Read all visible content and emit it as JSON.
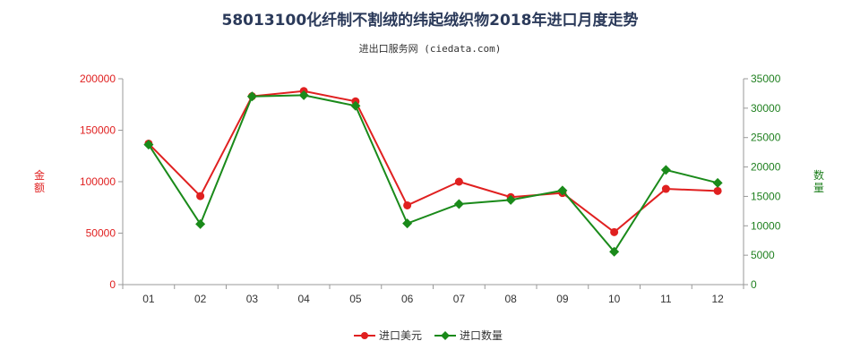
{
  "chart_data": {
    "type": "line",
    "title": "58013100化纤制不割绒的纬起绒织物2018年进口月度走势",
    "subtitle": "进出口服务网 (ciedata.com)",
    "categories": [
      "01",
      "02",
      "03",
      "04",
      "05",
      "06",
      "07",
      "08",
      "09",
      "10",
      "11",
      "12"
    ],
    "y_left": {
      "label": "金额",
      "ylim": [
        0,
        200000
      ],
      "ticks": [
        "0",
        "50000",
        "100000",
        "150000",
        "200000"
      ],
      "color": "#e02020"
    },
    "y_right": {
      "label": "数量",
      "ylim": [
        0,
        35000
      ],
      "ticks": [
        "0",
        "5000",
        "10000",
        "15000",
        "20000",
        "25000",
        "30000",
        "35000"
      ],
      "color": "#208020"
    },
    "series": [
      {
        "name": "进口美元",
        "axis": "left",
        "color": "#e02020",
        "values": [
          137000,
          86000,
          183000,
          188000,
          178000,
          77000,
          100000,
          85000,
          89000,
          51000,
          93000,
          91000
        ]
      },
      {
        "name": "进口数量",
        "axis": "right",
        "color": "#1a8a1a",
        "values": [
          23800,
          10300,
          32000,
          32200,
          30400,
          10400,
          13700,
          14400,
          16000,
          5600,
          19500,
          17300
        ]
      }
    ],
    "grid": false,
    "legend": "bottom-center"
  }
}
